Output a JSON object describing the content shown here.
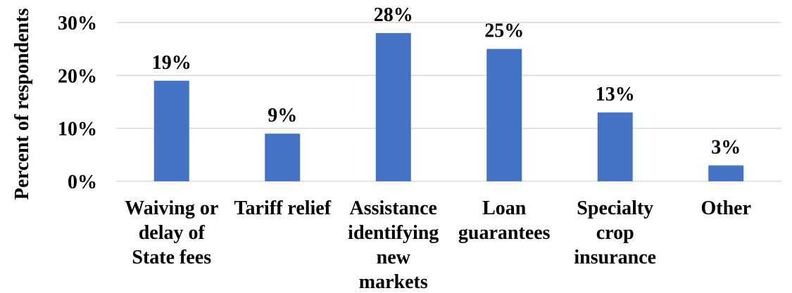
{
  "chart_data": {
    "type": "bar",
    "title": "",
    "xlabel": "",
    "ylabel": "Percent of respondents",
    "categories": [
      [
        "Waiving or",
        "delay of",
        "State fees"
      ],
      [
        "Tariff relief"
      ],
      [
        "Assistance",
        "identifying",
        "new",
        "markets"
      ],
      [
        "Loan",
        "guarantees"
      ],
      [
        "Specialty",
        "crop",
        "insurance"
      ],
      [
        "Other"
      ]
    ],
    "values": [
      19,
      9,
      28,
      25,
      13,
      3
    ],
    "data_labels": [
      "19%",
      "9%",
      "28%",
      "25%",
      "13%",
      "3%"
    ],
    "ylim": [
      0,
      30
    ],
    "yticks": [
      0,
      10,
      20,
      30
    ],
    "ytick_labels": [
      "0%",
      "10%",
      "20%",
      "30%"
    ],
    "bar_color": "#4472c4",
    "grid": true,
    "legend": "none"
  }
}
